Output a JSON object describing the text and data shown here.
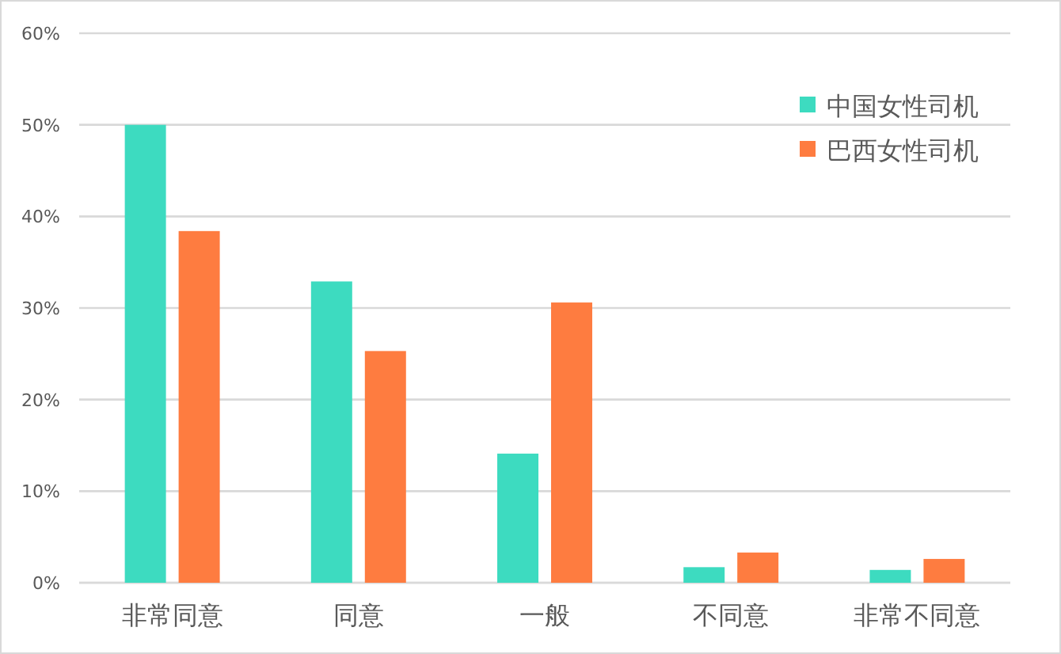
{
  "chart_data": {
    "type": "bar",
    "categories": [
      "非常同意",
      "同意",
      "一般",
      "不同意",
      "非常不同意"
    ],
    "series": [
      {
        "name": "中国女性司机",
        "color": "#3ddbc0",
        "values": [
          50,
          32.9,
          14.1,
          1.7,
          1.4
        ]
      },
      {
        "name": "巴西女性司机",
        "color": "#fe7c40",
        "values": [
          38.4,
          25.3,
          30.6,
          3.3,
          2.6
        ]
      }
    ],
    "ylim": [
      0,
      60
    ],
    "yticks": [
      {
        "value": 0,
        "label": "0%"
      },
      {
        "value": 10,
        "label": "10%"
      },
      {
        "value": 20,
        "label": "20%"
      },
      {
        "value": 30,
        "label": "30%"
      },
      {
        "value": 40,
        "label": "40%"
      },
      {
        "value": 50,
        "label": "50%"
      },
      {
        "value": 60,
        "label": "60%"
      }
    ],
    "grid": "y",
    "legend": "top right"
  }
}
